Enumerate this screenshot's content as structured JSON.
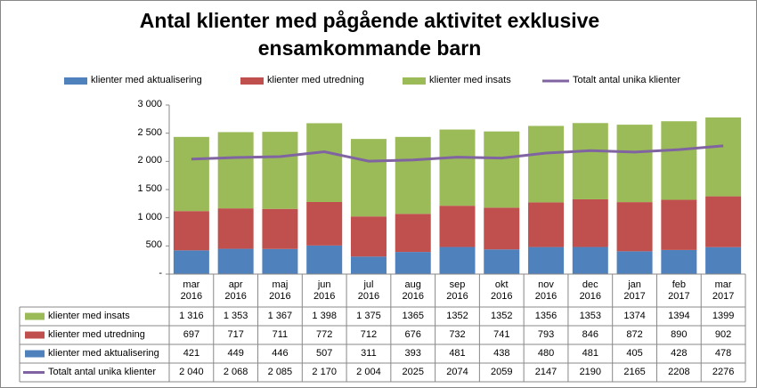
{
  "chart_data": {
    "type": "bar",
    "stacked": true,
    "title": "Antal klienter med pågående aktivitet exklusive ensamkommande barn",
    "categories": [
      "mar 2016",
      "apr 2016",
      "maj 2016",
      "jun 2016",
      "jul 2016",
      "aug 2016",
      "sep 2016",
      "okt 2016",
      "nov 2016",
      "dec 2016",
      "jan 2017",
      "feb 2017",
      "mar 2017"
    ],
    "ylim": [
      0,
      3000
    ],
    "yticks": [
      {
        "value": 0,
        "label": "-"
      },
      500,
      {
        "value": 1000,
        "label": "1 000"
      },
      {
        "value": 1500,
        "label": "1 500"
      },
      {
        "value": 2000,
        "label": "2 000"
      },
      {
        "value": 2500,
        "label": "2 500"
      },
      {
        "value": 3000,
        "label": "3 000"
      }
    ],
    "legend": "top",
    "series": [
      {
        "name": "klienter med aktualisering",
        "color": "#4f81bd",
        "values": [
          421,
          449,
          446,
          507,
          311,
          393,
          481,
          438,
          480,
          481,
          405,
          428,
          478
        ]
      },
      {
        "name": "klienter med utredning",
        "color": "#c0504d",
        "values": [
          697,
          717,
          711,
          772,
          712,
          676,
          732,
          741,
          793,
          846,
          872,
          890,
          902
        ]
      },
      {
        "name": "klienter med insats",
        "color": "#9bbb59",
        "values": [
          1316,
          1353,
          1367,
          1398,
          1375,
          1365,
          1352,
          1352,
          1356,
          1353,
          1374,
          1394,
          1399
        ],
        "value_labels": [
          "1 316",
          "1 353",
          "1 367",
          "1 398",
          "1 375",
          "1365",
          "1352",
          "1352",
          "1356",
          "1353",
          "1374",
          "1394",
          "1399"
        ]
      },
      {
        "name": "Totalt antal unika klienter",
        "type": "line",
        "color": "#8064a2",
        "values": [
          2040,
          2068,
          2085,
          2170,
          2004,
          2025,
          2074,
          2059,
          2147,
          2190,
          2165,
          2208,
          2276
        ],
        "value_labels": [
          "2 040",
          "2 068",
          "2 085",
          "2 170",
          "2 004",
          "2025",
          "2074",
          "2059",
          "2147",
          "2190",
          "2165",
          "2208",
          "2276"
        ]
      }
    ]
  }
}
